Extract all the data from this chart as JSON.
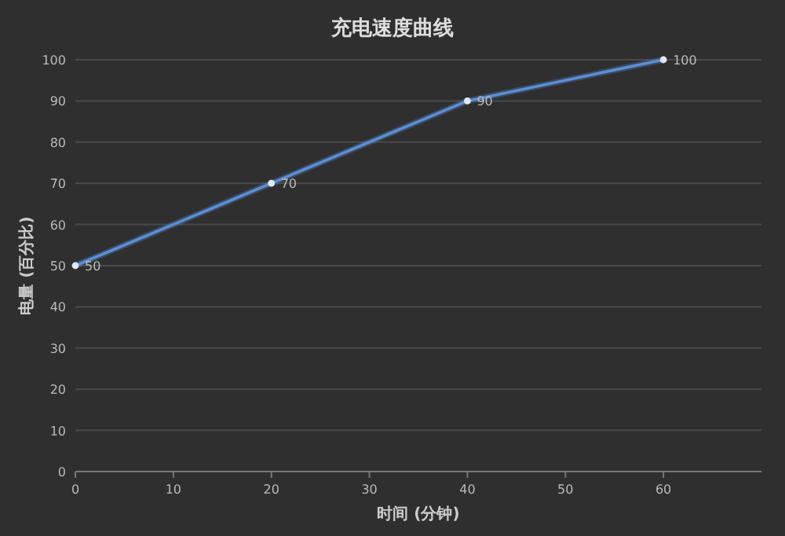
{
  "chart_data": {
    "type": "line",
    "title": "充电速度曲线",
    "xlabel": "时间 (分钟)",
    "ylabel": "电量 (百分比)",
    "x": [
      0,
      20,
      40,
      60
    ],
    "series": [
      {
        "color": "#5b8fd6",
        "values": [
          50,
          70,
          90,
          100
        ]
      }
    ],
    "xlim": [
      0,
      70
    ],
    "xticks": [
      0,
      10,
      20,
      30,
      40,
      50,
      60
    ],
    "ylim": [
      0,
      100
    ],
    "yticks": [
      0,
      10,
      20,
      30,
      40,
      50,
      60,
      70,
      80,
      90,
      100
    ],
    "grid": "y",
    "data_labels": true,
    "marker": "circle"
  }
}
